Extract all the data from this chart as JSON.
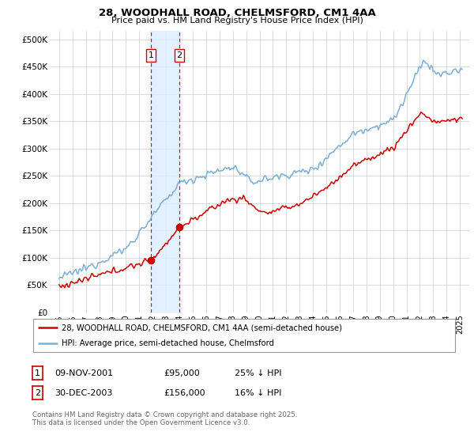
{
  "title_line1": "28, WOODHALL ROAD, CHELMSFORD, CM1 4AA",
  "title_line2": "Price paid vs. HM Land Registry's House Price Index (HPI)",
  "ylabel_ticks": [
    "£0",
    "£50K",
    "£100K",
    "£150K",
    "£200K",
    "£250K",
    "£300K",
    "£350K",
    "£400K",
    "£450K",
    "£500K"
  ],
  "ytick_values": [
    0,
    50000,
    100000,
    150000,
    200000,
    250000,
    300000,
    350000,
    400000,
    450000,
    500000
  ],
  "ylim": [
    0,
    515000
  ],
  "color_red": "#cc0000",
  "color_blue": "#7aaed6",
  "color_shaded": "#ddeeff",
  "marker1_year": 2001.86,
  "marker1_price": 95000,
  "marker1_label": "1",
  "marker2_year": 2003.99,
  "marker2_price": 156000,
  "marker2_label": "2",
  "legend_line1": "28, WOODHALL ROAD, CHELMSFORD, CM1 4AA (semi-detached house)",
  "legend_line2": "HPI: Average price, semi-detached house, Chelmsford",
  "table_row1": [
    "1",
    "09-NOV-2001",
    "£95,000",
    "25% ↓ HPI"
  ],
  "table_row2": [
    "2",
    "30-DEC-2003",
    "£156,000",
    "16% ↓ HPI"
  ],
  "footer": "Contains HM Land Registry data © Crown copyright and database right 2025.\nThis data is licensed under the Open Government Licence v3.0.",
  "background_color": "#ffffff",
  "grid_color": "#cccccc"
}
